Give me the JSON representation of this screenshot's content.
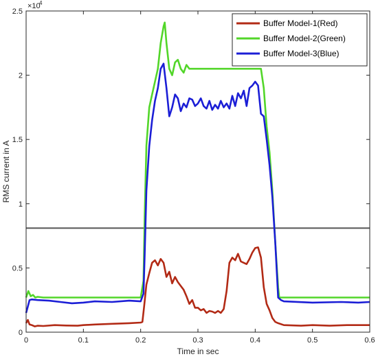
{
  "chart_data": {
    "type": "line",
    "xlabel": "Time in sec",
    "ylabel": "RMS current in A",
    "y_exponent_label": "×10",
    "y_exponent_power": "4",
    "xlim": [
      0,
      0.6
    ],
    "ylim": [
      0,
      25000
    ],
    "xticks": [
      0,
      0.1,
      0.2,
      0.3,
      0.4,
      0.5,
      0.6
    ],
    "xtick_labels": [
      "0",
      "0.1",
      "0.2",
      "0.3",
      "0.4",
      "0.5",
      "0.6"
    ],
    "yticks": [
      0,
      5000,
      10000,
      15000,
      20000,
      25000
    ],
    "ytick_labels": [
      "0",
      "0.5",
      "1",
      "1.5",
      "2",
      "2.5"
    ],
    "grid": false,
    "legend_position": "top-right",
    "reference_line": {
      "y": 8100,
      "color": "#555555"
    },
    "series": [
      {
        "name": "Buffer Model-1(Red)",
        "color": "#b22a15",
        "points": [
          [
            0,
            700
          ],
          [
            0.003,
            950
          ],
          [
            0.006,
            600
          ],
          [
            0.01,
            550
          ],
          [
            0.015,
            450
          ],
          [
            0.02,
            500
          ],
          [
            0.03,
            480
          ],
          [
            0.05,
            550
          ],
          [
            0.07,
            520
          ],
          [
            0.09,
            500
          ],
          [
            0.1,
            550
          ],
          [
            0.12,
            600
          ],
          [
            0.15,
            650
          ],
          [
            0.18,
            700
          ],
          [
            0.2,
            750
          ],
          [
            0.203,
            800
          ],
          [
            0.206,
            2000
          ],
          [
            0.21,
            3700
          ],
          [
            0.215,
            4600
          ],
          [
            0.22,
            5400
          ],
          [
            0.225,
            5600
          ],
          [
            0.23,
            5200
          ],
          [
            0.235,
            5700
          ],
          [
            0.24,
            5400
          ],
          [
            0.245,
            4300
          ],
          [
            0.25,
            4700
          ],
          [
            0.255,
            3800
          ],
          [
            0.26,
            4300
          ],
          [
            0.265,
            3900
          ],
          [
            0.27,
            3600
          ],
          [
            0.275,
            3300
          ],
          [
            0.28,
            2800
          ],
          [
            0.285,
            2200
          ],
          [
            0.29,
            2500
          ],
          [
            0.295,
            1900
          ],
          [
            0.3,
            1900
          ],
          [
            0.305,
            1700
          ],
          [
            0.31,
            1800
          ],
          [
            0.315,
            1500
          ],
          [
            0.32,
            1650
          ],
          [
            0.325,
            1600
          ],
          [
            0.33,
            1500
          ],
          [
            0.335,
            1650
          ],
          [
            0.34,
            1500
          ],
          [
            0.345,
            1800
          ],
          [
            0.35,
            3200
          ],
          [
            0.355,
            5400
          ],
          [
            0.36,
            5800
          ],
          [
            0.365,
            5600
          ],
          [
            0.37,
            6100
          ],
          [
            0.375,
            5500
          ],
          [
            0.38,
            5400
          ],
          [
            0.385,
            5300
          ],
          [
            0.39,
            5700
          ],
          [
            0.395,
            6200
          ],
          [
            0.4,
            6550
          ],
          [
            0.405,
            6600
          ],
          [
            0.41,
            5800
          ],
          [
            0.415,
            3500
          ],
          [
            0.42,
            2200
          ],
          [
            0.425,
            1700
          ],
          [
            0.43,
            1100
          ],
          [
            0.435,
            800
          ],
          [
            0.44,
            700
          ],
          [
            0.45,
            550
          ],
          [
            0.48,
            500
          ],
          [
            0.5,
            550
          ],
          [
            0.53,
            500
          ],
          [
            0.56,
            550
          ],
          [
            0.6,
            550
          ]
        ]
      },
      {
        "name": "Buffer Model-2(Green)",
        "color": "#52d629",
        "points": [
          [
            0,
            2700
          ],
          [
            0.004,
            3200
          ],
          [
            0.008,
            2800
          ],
          [
            0.012,
            2900
          ],
          [
            0.016,
            2700
          ],
          [
            0.02,
            2750
          ],
          [
            0.03,
            2700
          ],
          [
            0.1,
            2700
          ],
          [
            0.2,
            2700
          ],
          [
            0.205,
            4000
          ],
          [
            0.207,
            9000
          ],
          [
            0.21,
            14500
          ],
          [
            0.215,
            17500
          ],
          [
            0.22,
            18500
          ],
          [
            0.225,
            19500
          ],
          [
            0.23,
            20500
          ],
          [
            0.235,
            22500
          ],
          [
            0.24,
            23800
          ],
          [
            0.242,
            24100
          ],
          [
            0.245,
            22500
          ],
          [
            0.25,
            20500
          ],
          [
            0.255,
            20000
          ],
          [
            0.26,
            21000
          ],
          [
            0.265,
            21200
          ],
          [
            0.27,
            20500
          ],
          [
            0.275,
            20200
          ],
          [
            0.28,
            20800
          ],
          [
            0.285,
            20500
          ],
          [
            0.29,
            20500
          ],
          [
            0.3,
            20500
          ],
          [
            0.35,
            20500
          ],
          [
            0.4,
            20500
          ],
          [
            0.41,
            20500
          ],
          [
            0.415,
            19000
          ],
          [
            0.42,
            16000
          ],
          [
            0.425,
            14000
          ],
          [
            0.43,
            11000
          ],
          [
            0.435,
            7000
          ],
          [
            0.44,
            3500
          ],
          [
            0.442,
            2700
          ],
          [
            0.45,
            2700
          ],
          [
            0.5,
            2700
          ],
          [
            0.55,
            2700
          ],
          [
            0.6,
            2700
          ]
        ]
      },
      {
        "name": "Buffer Model-3(Blue)",
        "color": "#1b1ed6",
        "points": [
          [
            0,
            1500
          ],
          [
            0.003,
            2000
          ],
          [
            0.006,
            2500
          ],
          [
            0.01,
            2550
          ],
          [
            0.02,
            2500
          ],
          [
            0.04,
            2450
          ],
          [
            0.06,
            2350
          ],
          [
            0.08,
            2250
          ],
          [
            0.1,
            2300
          ],
          [
            0.12,
            2400
          ],
          [
            0.15,
            2350
          ],
          [
            0.18,
            2450
          ],
          [
            0.2,
            2400
          ],
          [
            0.205,
            3000
          ],
          [
            0.207,
            6000
          ],
          [
            0.21,
            11000
          ],
          [
            0.215,
            14500
          ],
          [
            0.22,
            16500
          ],
          [
            0.225,
            18000
          ],
          [
            0.23,
            19000
          ],
          [
            0.235,
            20500
          ],
          [
            0.24,
            20900
          ],
          [
            0.245,
            19000
          ],
          [
            0.25,
            16800
          ],
          [
            0.255,
            17500
          ],
          [
            0.26,
            18500
          ],
          [
            0.265,
            18200
          ],
          [
            0.27,
            17200
          ],
          [
            0.275,
            17800
          ],
          [
            0.28,
            17500
          ],
          [
            0.285,
            18200
          ],
          [
            0.29,
            18100
          ],
          [
            0.295,
            17600
          ],
          [
            0.3,
            17800
          ],
          [
            0.305,
            18200
          ],
          [
            0.31,
            17600
          ],
          [
            0.315,
            17400
          ],
          [
            0.32,
            18000
          ],
          [
            0.325,
            17300
          ],
          [
            0.33,
            17700
          ],
          [
            0.335,
            17400
          ],
          [
            0.34,
            18000
          ],
          [
            0.345,
            17500
          ],
          [
            0.35,
            17800
          ],
          [
            0.355,
            17400
          ],
          [
            0.36,
            18400
          ],
          [
            0.365,
            17600
          ],
          [
            0.37,
            18600
          ],
          [
            0.375,
            18200
          ],
          [
            0.38,
            18800
          ],
          [
            0.385,
            17600
          ],
          [
            0.39,
            19000
          ],
          [
            0.395,
            19200
          ],
          [
            0.4,
            19500
          ],
          [
            0.405,
            19200
          ],
          [
            0.41,
            17000
          ],
          [
            0.415,
            16800
          ],
          [
            0.42,
            15000
          ],
          [
            0.425,
            13000
          ],
          [
            0.43,
            10500
          ],
          [
            0.435,
            7000
          ],
          [
            0.44,
            2700
          ],
          [
            0.445,
            2500
          ],
          [
            0.45,
            2400
          ],
          [
            0.5,
            2300
          ],
          [
            0.55,
            2350
          ],
          [
            0.58,
            2300
          ],
          [
            0.6,
            2350
          ]
        ]
      }
    ]
  }
}
